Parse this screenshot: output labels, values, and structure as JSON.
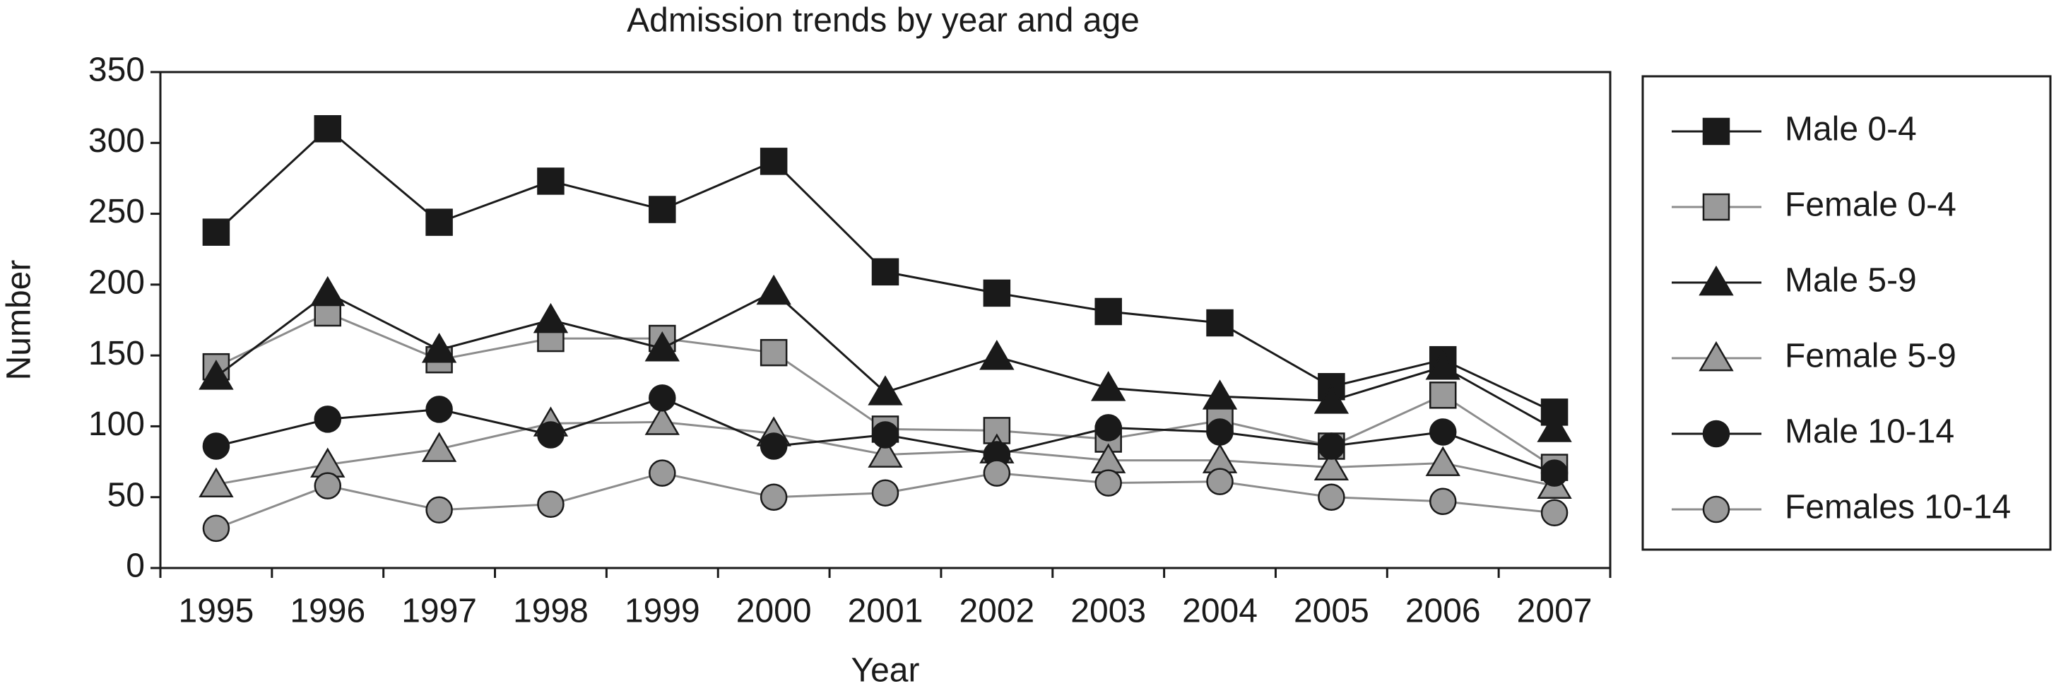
{
  "chart_data": {
    "type": "line",
    "title": "Admission trends by year and age",
    "x_label": "Year",
    "y_label": "Number",
    "categories": [
      "1995",
      "1996",
      "1997",
      "1998",
      "1999",
      "2000",
      "2001",
      "2002",
      "2003",
      "2004",
      "2005",
      "2006",
      "2007"
    ],
    "ylim": [
      0,
      350
    ],
    "yticks": [
      0,
      50,
      100,
      150,
      200,
      250,
      300,
      350
    ],
    "grid": false,
    "legend": "right",
    "series": [
      {
        "name": "Male 0-4",
        "color": "#1a1a1a",
        "marker": "square",
        "marker_color": "#1a1a1a",
        "values": [
          237,
          310,
          244,
          273,
          253,
          287,
          209,
          194,
          181,
          173,
          128,
          147,
          110
        ]
      },
      {
        "name": "Female 0-4",
        "color": "#8c8c8c",
        "marker": "square",
        "marker_color": "#9a9a9a",
        "values": [
          142,
          180,
          147,
          162,
          162,
          152,
          98,
          97,
          91,
          104,
          86,
          122,
          71
        ]
      },
      {
        "name": "Male 5-9",
        "color": "#1a1a1a",
        "marker": "triangle",
        "marker_color": "#1a1a1a",
        "values": [
          135,
          194,
          154,
          175,
          155,
          195,
          124,
          149,
          127,
          121,
          118,
          142,
          98
        ]
      },
      {
        "name": "Female 5-9",
        "color": "#8c8c8c",
        "marker": "triangle",
        "marker_color": "#9a9a9a",
        "values": [
          59,
          73,
          84,
          102,
          103,
          95,
          80,
          83,
          76,
          76,
          71,
          74,
          58
        ]
      },
      {
        "name": "Male 10-14",
        "color": "#1a1a1a",
        "marker": "circle",
        "marker_color": "#1a1a1a",
        "values": [
          86,
          105,
          112,
          94,
          120,
          86,
          94,
          80,
          99,
          96,
          86,
          96,
          67
        ]
      },
      {
        "name": "Females 10-14",
        "color": "#8c8c8c",
        "marker": "circle",
        "marker_color": "#9a9a9a",
        "values": [
          28,
          58,
          41,
          45,
          67,
          50,
          53,
          67,
          60,
          61,
          50,
          47,
          39
        ]
      }
    ]
  }
}
